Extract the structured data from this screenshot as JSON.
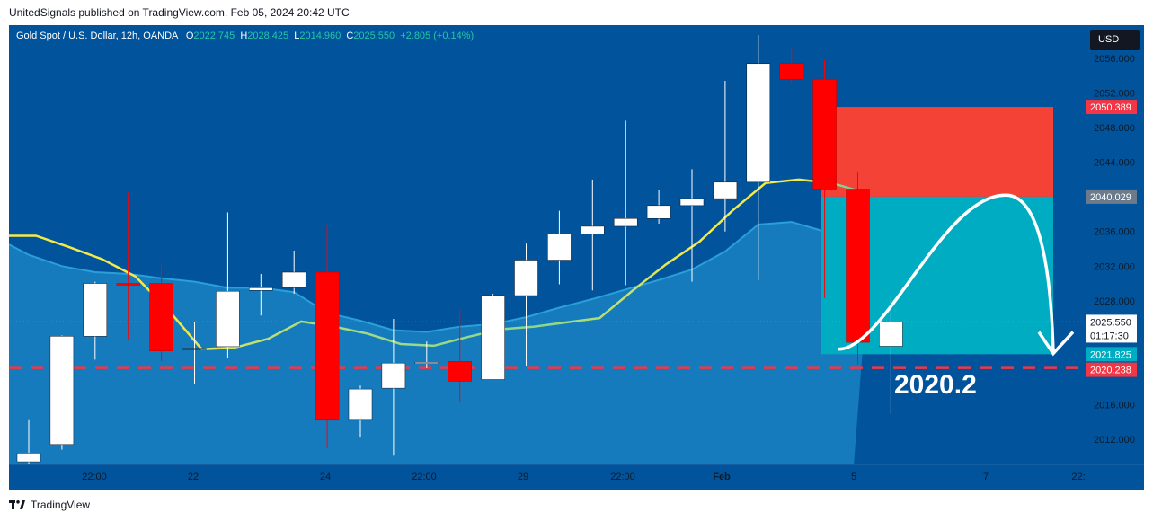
{
  "header": {
    "text": "UnitedSignals published on TradingView.com, Feb 05, 2024 20:42 UTC"
  },
  "footer": {
    "brand": "TradingView"
  },
  "legend": {
    "symbol": "Gold Spot / U.S. Dollar, 12h, OANDA",
    "o_label": "O",
    "o_value": "2022.745",
    "h_label": "H",
    "h_value": "2028.425",
    "l_label": "L",
    "l_value": "2014.960",
    "c_label": "C",
    "c_value": "2025.550",
    "change": "+2.805 (+0.14%)"
  },
  "currency_button": "USD",
  "annotation": "2020.2",
  "colors": {
    "background": "#01539b",
    "up_candle": "#ffffff",
    "down_candle": "#ff0000",
    "ema_line": "#f5ea4a",
    "stop_zone": "#f44336",
    "target_zone": "#00acc1",
    "area_fill": "#1e88c8",
    "dashed_level": "#f23645"
  },
  "chart_data": {
    "type": "candlestick",
    "symbol": "XAU/USD",
    "interval": "12h",
    "ylim": [
      2009,
      2060
    ],
    "y_ticks": [
      "2012.000",
      "2016.000",
      "2020.000",
      "2024.000",
      "2028.000",
      "2032.000",
      "2036.000",
      "2040.000",
      "2044.000",
      "2048.000",
      "2052.000",
      "2056.000"
    ],
    "x_ticks": [
      "22:00",
      "22",
      "24",
      "22:00",
      "29",
      "22:00",
      "Feb",
      "5",
      "7",
      "22:"
    ],
    "candles": [
      {
        "o": 2009.4,
        "h": 2014.2,
        "l": 2009.0,
        "c": 2010.4
      },
      {
        "o": 2011.4,
        "h": 2024.0,
        "l": 2010.8,
        "c": 2023.9
      },
      {
        "o": 2023.9,
        "h": 2030.2,
        "l": 2021.2,
        "c": 2030.0
      },
      {
        "o": 2030.0,
        "h": 2040.5,
        "l": 2023.5,
        "c": 2029.8
      },
      {
        "o": 2030.0,
        "h": 2032.3,
        "l": 2021.0,
        "c": 2022.2
      },
      {
        "o": 2022.5,
        "h": 2025.6,
        "l": 2018.4,
        "c": 2022.5
      },
      {
        "o": 2022.7,
        "h": 2038.2,
        "l": 2021.4,
        "c": 2029.1
      },
      {
        "o": 2029.2,
        "h": 2031.1,
        "l": 2026.3,
        "c": 2029.5
      },
      {
        "o": 2029.5,
        "h": 2033.8,
        "l": 2028.8,
        "c": 2031.3
      },
      {
        "o": 2031.3,
        "h": 2036.8,
        "l": 2011.0,
        "c": 2014.2
      },
      {
        "o": 2014.2,
        "h": 2018.2,
        "l": 2012.2,
        "c": 2017.8
      },
      {
        "o": 2017.9,
        "h": 2025.9,
        "l": 2010.1,
        "c": 2020.8
      },
      {
        "o": 2020.8,
        "h": 2023.3,
        "l": 2020.2,
        "c": 2020.9
      },
      {
        "o": 2021.0,
        "h": 2027.0,
        "l": 2016.3,
        "c": 2018.7
      },
      {
        "o": 2018.9,
        "h": 2028.8,
        "l": 2018.9,
        "c": 2028.6
      },
      {
        "o": 2028.6,
        "h": 2034.6,
        "l": 2020.5,
        "c": 2032.7
      },
      {
        "o": 2032.7,
        "h": 2038.4,
        "l": 2029.9,
        "c": 2035.7
      },
      {
        "o": 2035.7,
        "h": 2042.0,
        "l": 2029.2,
        "c": 2036.6
      },
      {
        "o": 2036.6,
        "h": 2048.8,
        "l": 2029.8,
        "c": 2037.5
      },
      {
        "o": 2037.5,
        "h": 2040.8,
        "l": 2036.9,
        "c": 2039.0
      },
      {
        "o": 2039.0,
        "h": 2043.2,
        "l": 2030.2,
        "c": 2039.8
      },
      {
        "o": 2039.8,
        "h": 2053.4,
        "l": 2036.0,
        "c": 2041.7
      },
      {
        "o": 2041.7,
        "h": 2058.7,
        "l": 2030.4,
        "c": 2055.4
      },
      {
        "o": 2055.4,
        "h": 2057.2,
        "l": 2053.0,
        "c": 2053.6
      },
      {
        "o": 2053.6,
        "h": 2055.8,
        "l": 2028.3,
        "c": 2040.9
      },
      {
        "o": 2040.9,
        "h": 2042.8,
        "l": 2020.6,
        "c": 2023.2
      },
      {
        "o": 2022.745,
        "h": 2028.425,
        "l": 2014.96,
        "c": 2025.55
      }
    ],
    "ema": [
      2035.5,
      2034.2,
      2032.8,
      2030.8,
      2026.9,
      2022.4,
      2022.6,
      2023.6,
      2025.6,
      2025.0,
      2024.2,
      2023.0,
      2022.8,
      2023.8,
      2024.7,
      2025.0,
      2025.5,
      2026.0,
      2029.2,
      2032.2,
      2034.8,
      2038.4,
      2041.6,
      2042.0,
      2041.6,
      2040.5
    ],
    "position": {
      "type": "short",
      "entry": 2040.029,
      "stop": 2050.389,
      "target": 2021.825,
      "current": 2025.55,
      "countdown": "01:17:30",
      "key_level": 2020.238
    },
    "price_labels": [
      "2050.389",
      "2040.029",
      "2025.550",
      "01:17:30",
      "2021.825",
      "2020.238"
    ]
  }
}
